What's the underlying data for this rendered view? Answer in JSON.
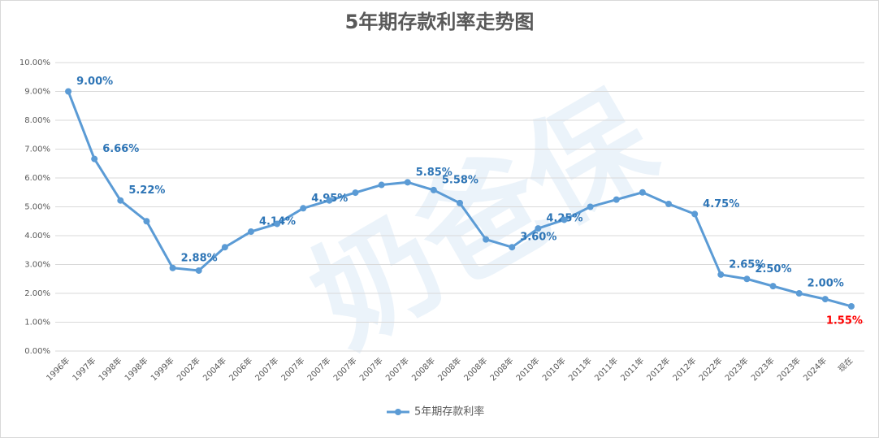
{
  "chart_data": {
    "type": "line",
    "title": "5年期存款利率走势图",
    "watermark": "奶爸保",
    "categories": [
      "1996年",
      "1997年",
      "1998年",
      "1998年",
      "1999年",
      "2002年",
      "2004年",
      "2006年",
      "2007年",
      "2007年",
      "2007年",
      "2007年",
      "2007年",
      "2007年",
      "2008年",
      "2008年",
      "2008年",
      "2008年",
      "2010年",
      "2010年",
      "2011年",
      "2011年",
      "2011年",
      "2012年",
      "2012年",
      "2022年",
      "2023年",
      "2023年",
      "2023年",
      "2024年",
      "现在"
    ],
    "series": [
      {
        "name": "5年期存款利率",
        "color": "#5b9bd5",
        "values": [
          9.0,
          6.66,
          5.22,
          4.5,
          2.88,
          2.79,
          3.6,
          4.14,
          4.41,
          4.95,
          5.22,
          5.49,
          5.76,
          5.85,
          5.58,
          5.13,
          3.87,
          3.6,
          4.25,
          4.55,
          5.0,
          5.25,
          5.5,
          5.1,
          4.75,
          2.65,
          2.5,
          2.25,
          2.0,
          1.8,
          1.55
        ],
        "value_labels": [
          "9.00%",
          "6.66%",
          "5.22%",
          null,
          "2.88%",
          null,
          null,
          "4.14%",
          null,
          "4.95%",
          null,
          null,
          null,
          "5.85%",
          "5.58%",
          null,
          null,
          "3.60%",
          "4.25%",
          null,
          null,
          null,
          null,
          null,
          "4.75%",
          "2.65%",
          "2.50%",
          null,
          "2.00%",
          null,
          "1.55%"
        ],
        "label_color": "#2e75b6",
        "last_label_color": "#ff0000"
      }
    ],
    "ylim": [
      0,
      10
    ],
    "yticks": [
      {
        "value": 0,
        "label": "0.00%"
      },
      {
        "value": 1,
        "label": "1.00%"
      },
      {
        "value": 2,
        "label": "2.00%"
      },
      {
        "value": 3,
        "label": "3.00%"
      },
      {
        "value": 4,
        "label": "4.00%"
      },
      {
        "value": 5,
        "label": "5.00%"
      },
      {
        "value": 6,
        "label": "6.00%"
      },
      {
        "value": 7,
        "label": "7.00%"
      },
      {
        "value": 8,
        "label": "8.00%"
      },
      {
        "value": 9,
        "label": "9.00%"
      },
      {
        "value": 10,
        "label": "10.00%"
      }
    ],
    "grid": true,
    "legend": "bottom"
  }
}
